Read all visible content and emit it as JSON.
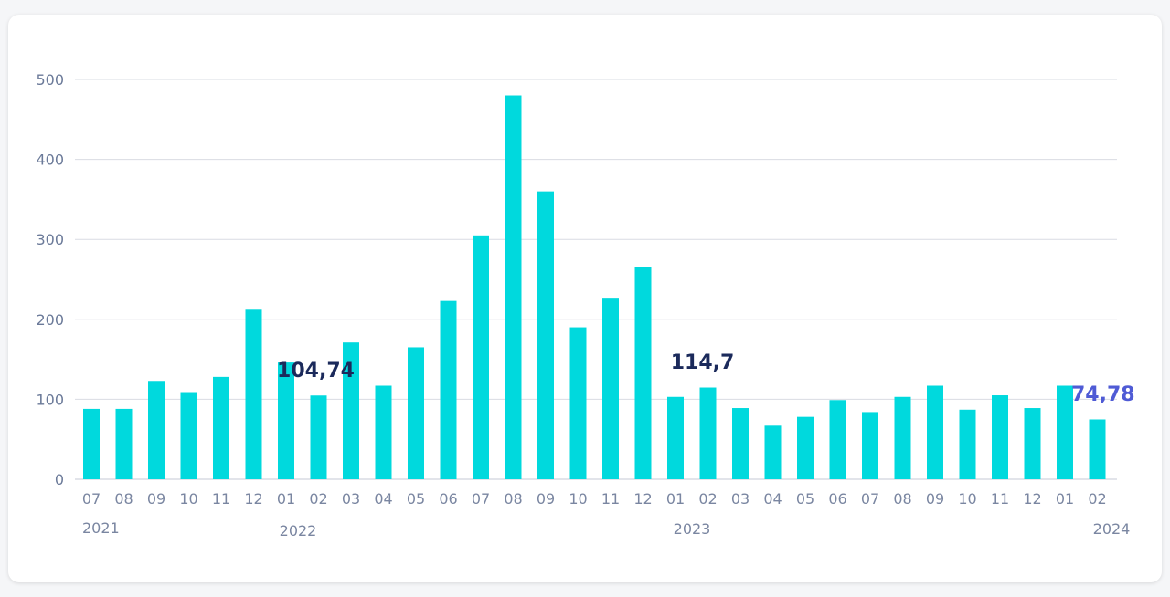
{
  "colors": {
    "bar": "#00d9dd",
    "grid": "#d9dce3",
    "axis_text": "#6b7a99",
    "annotation": "#1b2a5b",
    "annotation_last": "#4f5bd5"
  },
  "chart_data": {
    "type": "bar",
    "categories": [
      "07",
      "08",
      "09",
      "10",
      "11",
      "12",
      "01",
      "02",
      "03",
      "04",
      "05",
      "06",
      "07",
      "08",
      "09",
      "10",
      "11",
      "12",
      "01",
      "02",
      "03",
      "04",
      "05",
      "06",
      "07",
      "08",
      "09",
      "10",
      "11",
      "12",
      "01",
      "02"
    ],
    "values": [
      88,
      88,
      123,
      109,
      128,
      212,
      146,
      104.74,
      171,
      117,
      165,
      223,
      305,
      480,
      360,
      190,
      227,
      265,
      103,
      114.7,
      89,
      67,
      78,
      99,
      84,
      103,
      117,
      87,
      105,
      89,
      117,
      74.78
    ],
    "ylim": [
      0,
      500
    ],
    "yticks": [
      "0",
      "100",
      "200",
      "300",
      "400",
      "500"
    ],
    "ytick_values": [
      0,
      100,
      200,
      300,
      400,
      500
    ],
    "year_labels": [
      {
        "label": "2021",
        "category_index": 0
      },
      {
        "label": "2022",
        "category_index": 6
      },
      {
        "label": "2023",
        "category_index": 18
      },
      {
        "label": "2024",
        "category_index": 31
      }
    ],
    "annotations": [
      {
        "text": "104,74",
        "category_index": 7
      },
      {
        "text": "114,7",
        "category_index": 19
      },
      {
        "text": "74,78",
        "category_index": 31
      }
    ],
    "grid": true,
    "xlabel": "",
    "ylabel": "",
    "title": ""
  }
}
